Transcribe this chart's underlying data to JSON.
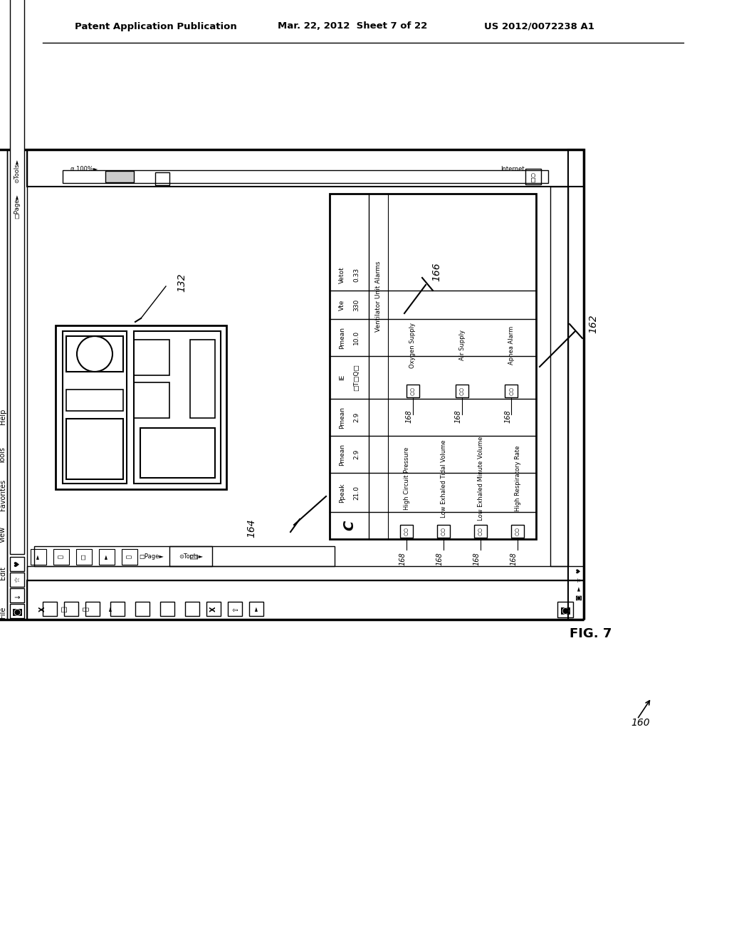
{
  "bg_color": "#ffffff",
  "header_left": "Patent Application Publication",
  "header_mid": "Mar. 22, 2012  Sheet 7 of 22",
  "header_right": "US 2012/0072238 A1",
  "fig_label": "FIG. 7"
}
